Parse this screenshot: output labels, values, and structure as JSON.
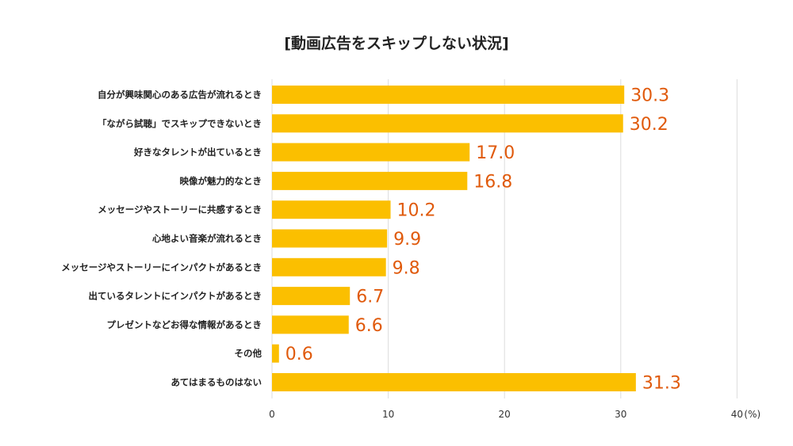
{
  "chart_data": {
    "type": "bar",
    "orientation": "horizontal",
    "title": "[動画広告をスキップしない状況]",
    "categories": [
      "自分が興味関心のある広告が流れるとき",
      "「ながら試聴」でスキップできないとき",
      "好きなタレントが出ているとき",
      "映像が魅力的なとき",
      "メッセージやストーリーに共感するとき",
      "心地よい音楽が流れるとき",
      "メッセージやストーリーにインパクトがあるとき",
      "出ているタレントにインパクトがあるとき",
      "プレゼントなどお得な情報があるとき",
      "その他",
      "あてはまるものはない"
    ],
    "values": [
      30.3,
      30.2,
      17.0,
      16.8,
      10.2,
      9.9,
      9.8,
      6.7,
      6.6,
      0.6,
      31.3
    ],
    "value_labels": [
      "30.3",
      "30.2",
      "17.0",
      "16.8",
      "10.2",
      "9.9",
      "9.8",
      "6.7",
      "6.6",
      "0.6",
      "31.3"
    ],
    "xlim": [
      0,
      40
    ],
    "xticks": [
      "0",
      "10",
      "20",
      "30",
      "40"
    ],
    "unit": "(%)",
    "grid": true,
    "colors": {
      "bar": "#fbbf00",
      "value_text": "#e05a0c",
      "grid": "#dddddd"
    }
  }
}
